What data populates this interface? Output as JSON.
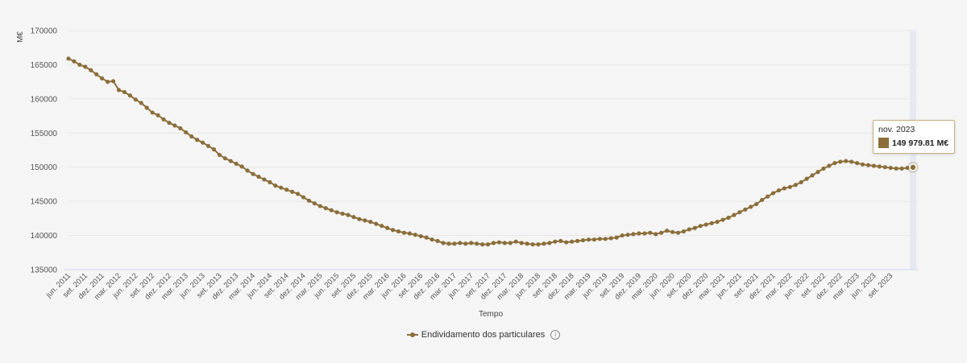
{
  "chart_data": {
    "type": "line",
    "ylabel": "M€",
    "xlabel": "Tempo",
    "ylim": [
      135000,
      170000
    ],
    "y_ticks": [
      "135000",
      "140000",
      "145000",
      "150000",
      "155000",
      "160000",
      "165000",
      "170000"
    ],
    "x_tick_labels": [
      "jun. 2011",
      "set. 2011",
      "dez. 2011",
      "mar. 2012",
      "jun. 2012",
      "set. 2012",
      "dez. 2012",
      "mar. 2013",
      "jun. 2013",
      "set. 2013",
      "dez. 2013",
      "mar. 2014",
      "jun. 2014",
      "set. 2014",
      "dez. 2014",
      "mar. 2015",
      "jun. 2015",
      "set. 2015",
      "dez. 2015",
      "mar. 2016",
      "jun. 2016",
      "set. 2016",
      "dez. 2016",
      "mar. 2017",
      "jun. 2017",
      "set. 2017",
      "dez. 2017",
      "mar. 2018",
      "jun. 2018",
      "set. 2018",
      "dez. 2018",
      "mar. 2019",
      "jun. 2019",
      "set. 2019",
      "dez. 2019",
      "mar. 2020",
      "jun. 2020",
      "set. 2020",
      "dez. 2020",
      "mar. 2021",
      "jun. 2021",
      "set. 2021",
      "dez. 2021",
      "mar. 2022",
      "jun. 2022",
      "set. 2022",
      "dez. 2022",
      "mar. 2023",
      "jun. 2023",
      "set. 2023"
    ],
    "start_month": "jun. 2011",
    "series": [
      {
        "name": "Endividamento dos particulares",
        "color": "#8b6e3a",
        "values": [
          165900,
          165500,
          165000,
          164700,
          164200,
          163600,
          163000,
          162500,
          162600,
          161300,
          161000,
          160500,
          159900,
          159400,
          158700,
          158000,
          157600,
          157000,
          156500,
          156100,
          155700,
          155100,
          154500,
          154000,
          153600,
          153100,
          152600,
          151800,
          151300,
          150900,
          150500,
          150100,
          149500,
          149000,
          148600,
          148200,
          147800,
          147300,
          147000,
          146700,
          146400,
          146100,
          145600,
          145100,
          144700,
          144300,
          144000,
          143700,
          143400,
          143200,
          143000,
          142700,
          142400,
          142200,
          142000,
          141700,
          141400,
          141100,
          140800,
          140600,
          140400,
          140300,
          140100,
          139900,
          139700,
          139400,
          139200,
          138900,
          138800,
          138800,
          138900,
          138800,
          138900,
          138800,
          138700,
          138700,
          138900,
          139000,
          138900,
          138900,
          139100,
          138900,
          138800,
          138700,
          138700,
          138800,
          138900,
          139100,
          139200,
          139000,
          139100,
          139200,
          139300,
          139400,
          139400,
          139500,
          139500,
          139600,
          139700,
          140000,
          140100,
          140200,
          140300,
          140300,
          140400,
          140200,
          140400,
          140700,
          140500,
          140400,
          140600,
          140900,
          141100,
          141400,
          141600,
          141800,
          142000,
          142300,
          142600,
          143000,
          143400,
          143800,
          144200,
          144600,
          145200,
          145700,
          146200,
          146600,
          146900,
          147100,
          147400,
          147800,
          148300,
          148800,
          149300,
          149800,
          150200,
          150600,
          150800,
          150900,
          150800,
          150600,
          150400,
          150300,
          150200,
          150100,
          150000,
          149900,
          149800,
          149800,
          149900,
          149979.81
        ]
      }
    ],
    "legend_position": "bottom-center",
    "grid": true
  },
  "tooltip": {
    "date": "nov. 2023",
    "value": "149 979.81 M€"
  },
  "legend": {
    "label": "Endividamento dos particulares",
    "info_glyph": "i"
  }
}
